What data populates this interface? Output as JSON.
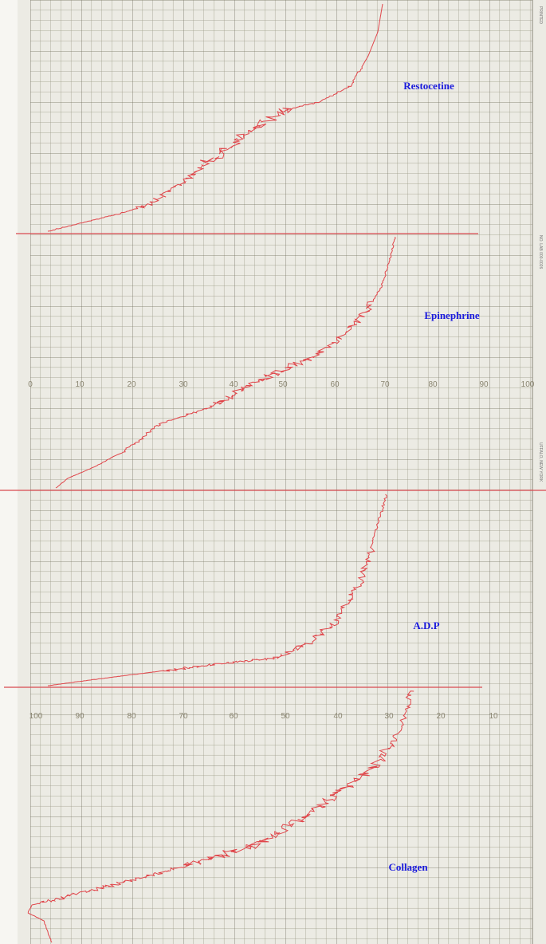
{
  "labels": [
    "Restocetine",
    "Epinephrine",
    "A.D.P",
    "Collagen"
  ],
  "upper_scale": [
    0,
    10,
    20,
    30,
    40,
    50,
    60,
    70,
    80,
    90,
    100
  ],
  "lower_scale": [
    100,
    90,
    80,
    70,
    60,
    50,
    40,
    30,
    20,
    10
  ],
  "side_texts": [
    "PRINTED",
    "NO. LAB 000-0026",
    "UFFALO, NEW YORK"
  ]
}
